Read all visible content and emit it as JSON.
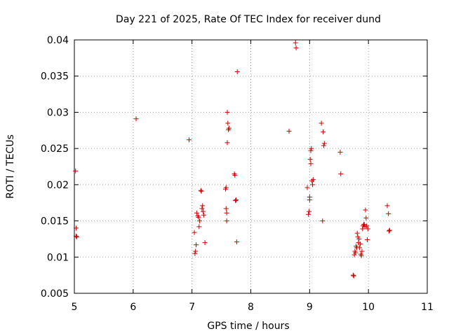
{
  "chart_data": {
    "type": "scatter",
    "title": "Day 221 of 2025, Rate Of TEC Index for receiver dund",
    "xlabel": "GPS time / hours",
    "ylabel": "ROTI / TECUs",
    "xlim": [
      5,
      11
    ],
    "ylim": [
      0.005,
      0.04
    ],
    "xticks": [
      5,
      6,
      7,
      8,
      9,
      10,
      11
    ],
    "xtick_labels": [
      "5",
      "6",
      "7",
      "8",
      "9",
      "10",
      "11"
    ],
    "yticks": [
      0.005,
      0.01,
      0.015,
      0.02,
      0.025,
      0.03,
      0.035,
      0.04
    ],
    "ytick_labels": [
      "0.005",
      "0.01",
      "0.015",
      "0.02",
      "0.025",
      "0.03",
      "0.035",
      "0.04"
    ],
    "grid": true,
    "marker": "+",
    "color": "#cc0000",
    "points": [
      [
        5.02,
        0.0219
      ],
      [
        5.03,
        0.014
      ],
      [
        5.03,
        0.0129
      ],
      [
        5.04,
        0.0128
      ],
      [
        6.05,
        0.0291
      ],
      [
        6.95,
        0.0262
      ],
      [
        7.04,
        0.0134
      ],
      [
        7.05,
        0.0105
      ],
      [
        7.06,
        0.0108
      ],
      [
        7.07,
        0.0117
      ],
      [
        7.08,
        0.0161
      ],
      [
        7.1,
        0.0157
      ],
      [
        7.11,
        0.0155
      ],
      [
        7.12,
        0.0142
      ],
      [
        7.13,
        0.015
      ],
      [
        7.15,
        0.0192
      ],
      [
        7.16,
        0.0191
      ],
      [
        7.17,
        0.0167
      ],
      [
        7.18,
        0.0171
      ],
      [
        7.19,
        0.0163
      ],
      [
        7.2,
        0.0158
      ],
      [
        7.22,
        0.012
      ],
      [
        7.57,
        0.0194
      ],
      [
        7.58,
        0.0196
      ],
      [
        7.58,
        0.0167
      ],
      [
        7.59,
        0.015
      ],
      [
        7.59,
        0.0161
      ],
      [
        7.6,
        0.0258
      ],
      [
        7.6,
        0.03
      ],
      [
        7.61,
        0.0285
      ],
      [
        7.62,
        0.0276
      ],
      [
        7.63,
        0.0278
      ],
      [
        7.72,
        0.0215
      ],
      [
        7.73,
        0.0213
      ],
      [
        7.74,
        0.0178
      ],
      [
        7.75,
        0.0179
      ],
      [
        7.76,
        0.0121
      ],
      [
        7.77,
        0.0356
      ],
      [
        8.65,
        0.0274
      ],
      [
        8.76,
        0.0396
      ],
      [
        8.77,
        0.0389
      ],
      [
        8.96,
        0.0196
      ],
      [
        8.98,
        0.0159
      ],
      [
        8.99,
        0.0163
      ],
      [
        9.0,
        0.0179
      ],
      [
        9.0,
        0.0183
      ],
      [
        9.01,
        0.0235
      ],
      [
        9.02,
        0.0229
      ],
      [
        9.02,
        0.0247
      ],
      [
        9.03,
        0.025
      ],
      [
        9.04,
        0.0205
      ],
      [
        9.05,
        0.02
      ],
      [
        9.06,
        0.0207
      ],
      [
        9.2,
        0.0285
      ],
      [
        9.22,
        0.015
      ],
      [
        9.23,
        0.0273
      ],
      [
        9.24,
        0.0254
      ],
      [
        9.25,
        0.0257
      ],
      [
        9.52,
        0.0245
      ],
      [
        9.53,
        0.0215
      ],
      [
        9.74,
        0.0075
      ],
      [
        9.75,
        0.0074
      ],
      [
        9.76,
        0.0103
      ],
      [
        9.77,
        0.0108
      ],
      [
        9.78,
        0.0106
      ],
      [
        9.79,
        0.0115
      ],
      [
        9.8,
        0.0113
      ],
      [
        9.81,
        0.0133
      ],
      [
        9.82,
        0.0128
      ],
      [
        9.83,
        0.012
      ],
      [
        9.84,
        0.0125
      ],
      [
        9.85,
        0.0113
      ],
      [
        9.86,
        0.0118
      ],
      [
        9.87,
        0.0104
      ],
      [
        9.88,
        0.0102
      ],
      [
        9.89,
        0.0108
      ],
      [
        9.9,
        0.0139
      ],
      [
        9.91,
        0.0143
      ],
      [
        9.92,
        0.0145
      ],
      [
        9.93,
        0.0145
      ],
      [
        9.94,
        0.0142
      ],
      [
        9.95,
        0.0165
      ],
      [
        9.96,
        0.0154
      ],
      [
        9.97,
        0.0143
      ],
      [
        9.98,
        0.0124
      ],
      [
        9.99,
        0.0139
      ],
      [
        10.32,
        0.0171
      ],
      [
        10.34,
        0.016
      ],
      [
        10.35,
        0.0136
      ],
      [
        10.36,
        0.0137
      ]
    ]
  }
}
